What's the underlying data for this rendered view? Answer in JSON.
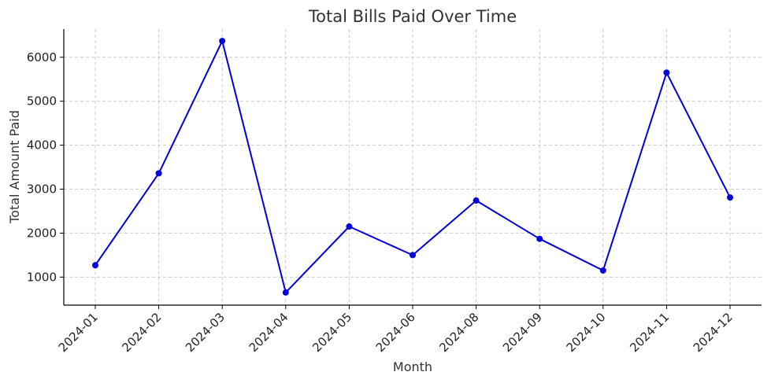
{
  "chart_data": {
    "type": "line",
    "title": "Total Bills Paid Over Time",
    "xlabel": "Month",
    "ylabel": "Total Amount Paid",
    "categories": [
      "2024-01",
      "2024-02",
      "2024-03",
      "2024-04",
      "2024-05",
      "2024-06",
      "2024-08",
      "2024-09",
      "2024-10",
      "2024-11",
      "2024-12"
    ],
    "series": [
      {
        "values": [
          1270,
          3360,
          6370,
          650,
          2150,
          1500,
          2740,
          1870,
          1150,
          5650,
          2810
        ],
        "color": "#0000dd"
      }
    ],
    "yticks": [
      1000,
      2000,
      3000,
      4000,
      5000,
      6000
    ],
    "ylim": [
      362,
      6640
    ],
    "grid": true,
    "legend": "none"
  }
}
